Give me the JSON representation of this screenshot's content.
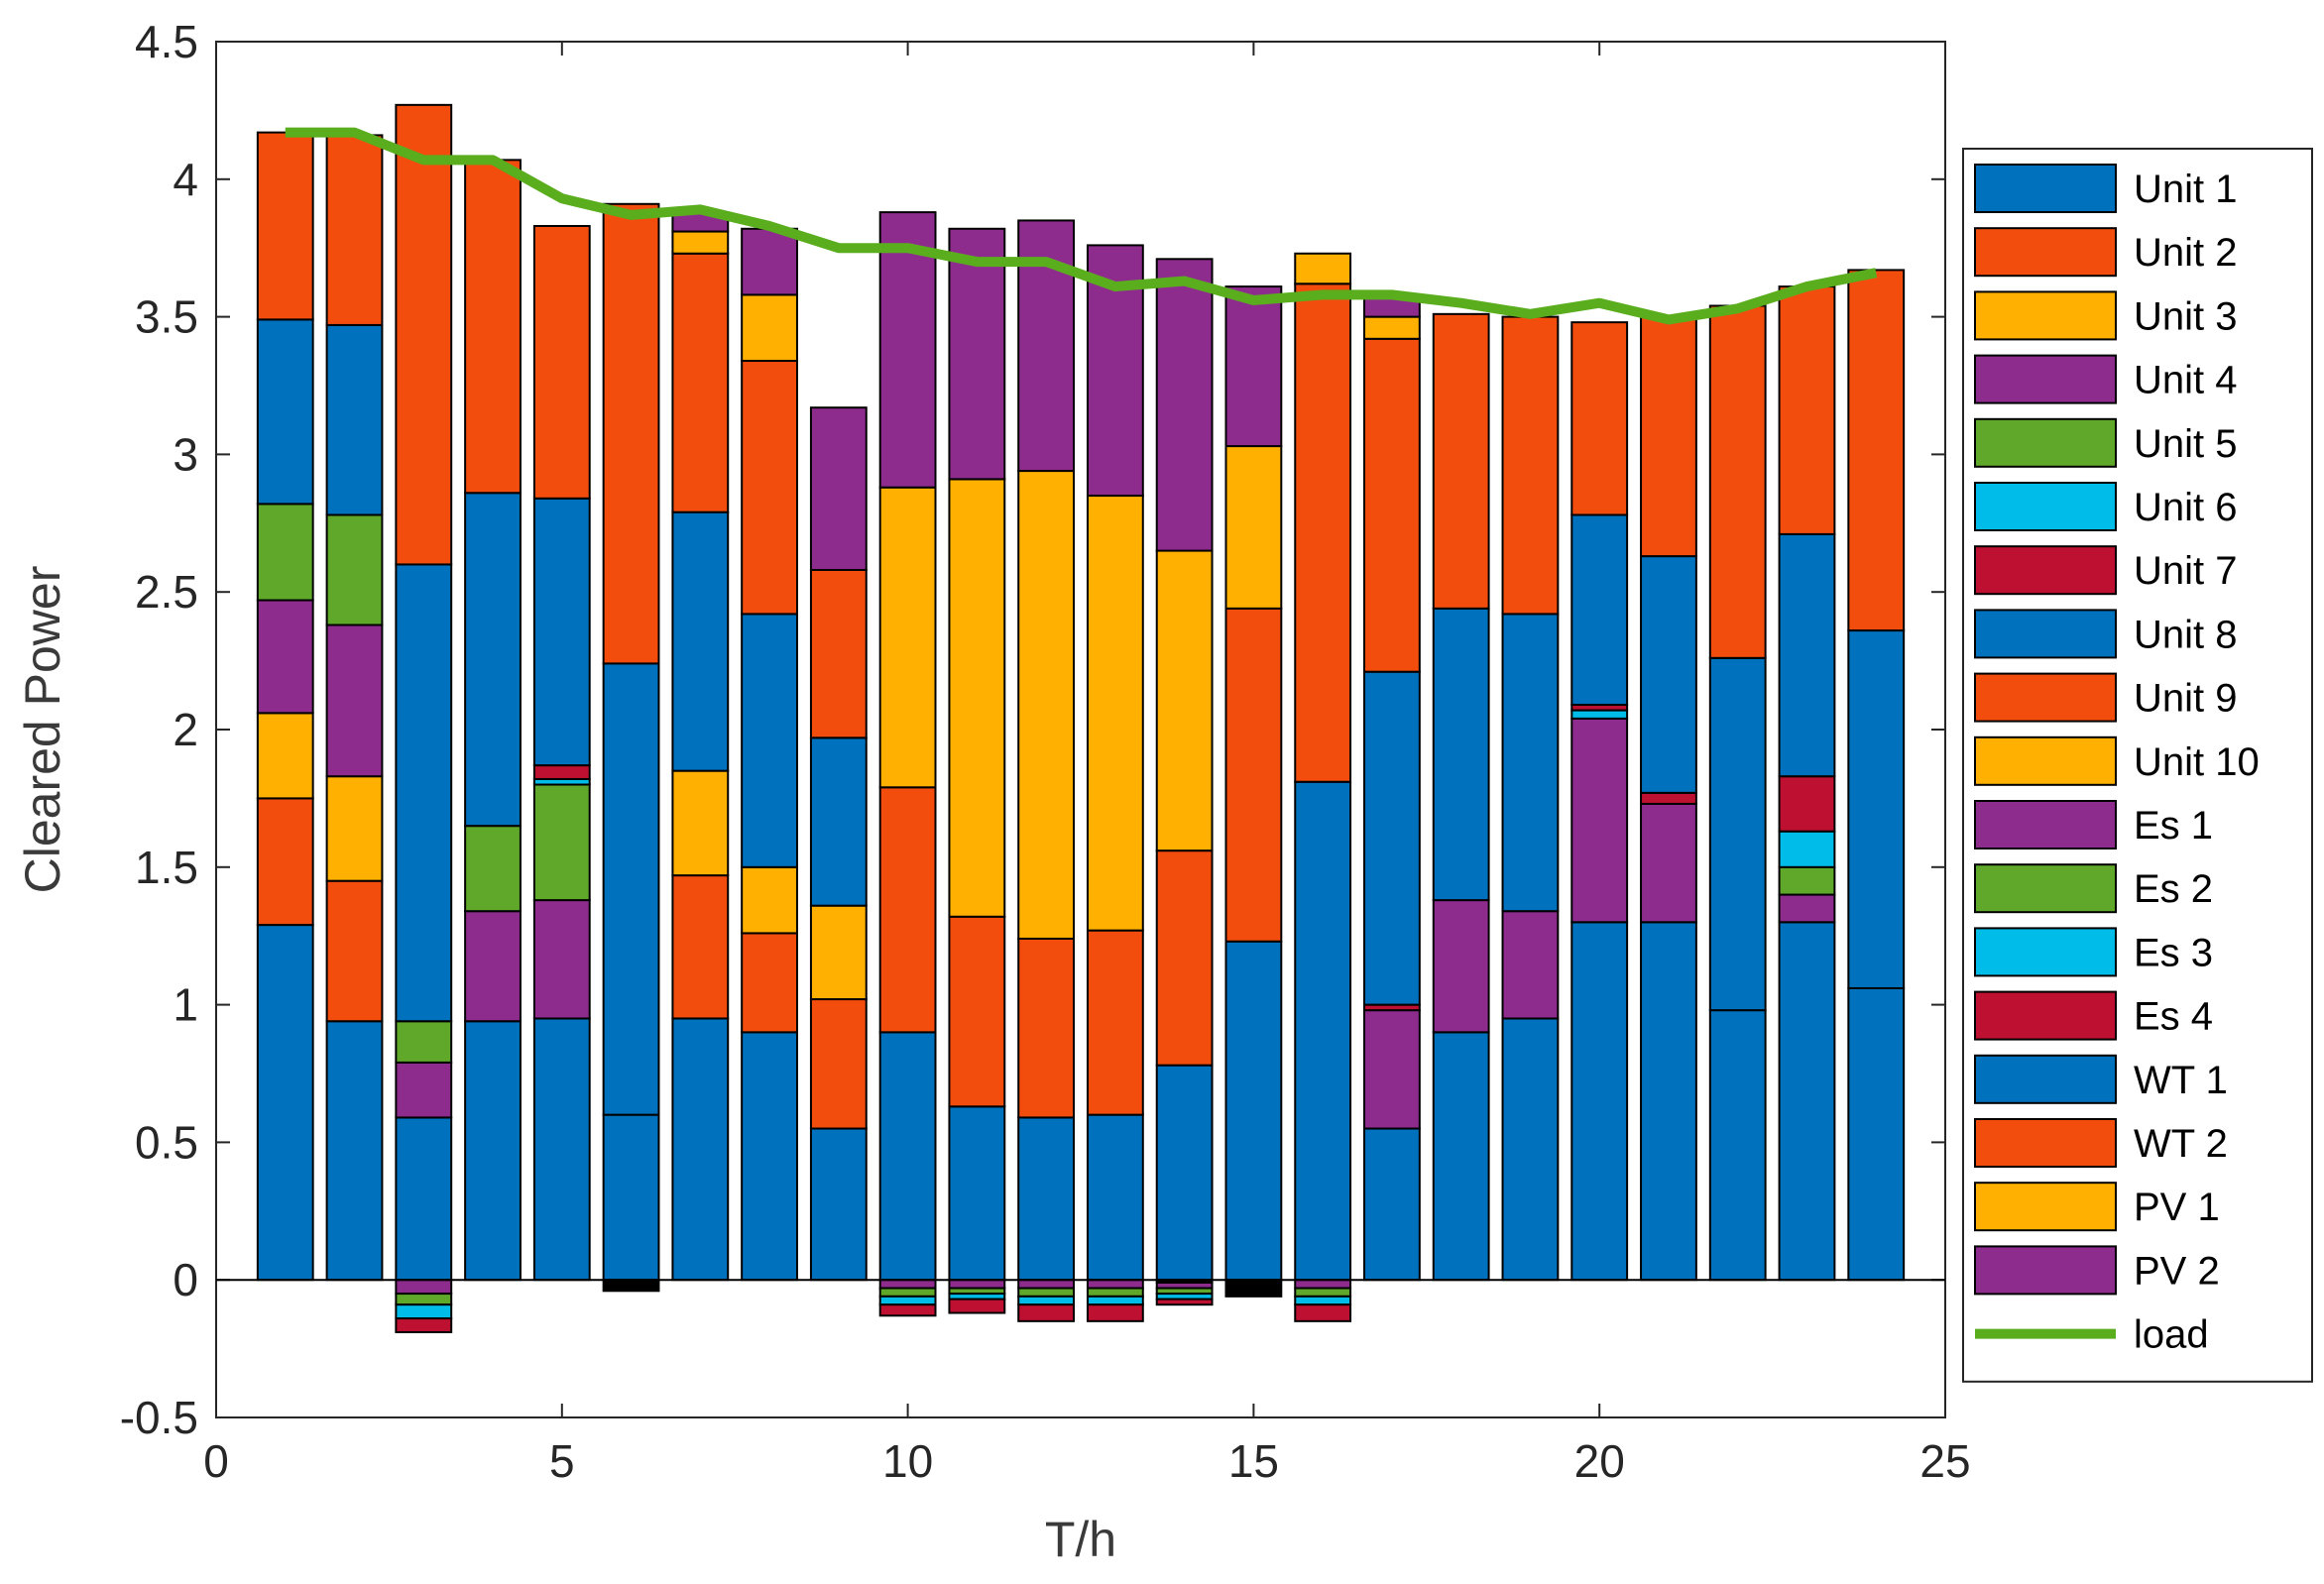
{
  "chart_data": {
    "type": "bar",
    "stacked": true,
    "xlabel": "T/h",
    "ylabel": "Cleared Power",
    "xlim": [
      0,
      25
    ],
    "ylim": [
      -0.5,
      4.5
    ],
    "xticks": [
      0,
      5,
      10,
      15,
      20,
      25
    ],
    "yticks": [
      -0.5,
      0,
      0.5,
      1,
      1.5,
      2,
      2.5,
      3,
      3.5,
      4,
      4.5
    ],
    "xtick_labels": [
      "0",
      "5",
      "10",
      "15",
      "20",
      "25"
    ],
    "ytick_labels": [
      "-0.5",
      "0",
      "0.5",
      "1",
      "1.5",
      "2",
      "2.5",
      "3",
      "3.5",
      "4",
      "4.5"
    ],
    "categories": [
      1,
      2,
      3,
      4,
      5,
      6,
      7,
      8,
      9,
      10,
      11,
      12,
      13,
      14,
      15,
      16,
      17,
      18,
      19,
      20,
      21,
      22,
      23,
      24
    ],
    "legend_position": "outside-right",
    "series": [
      {
        "name": "Unit 1",
        "color": "#0072BD",
        "values": [
          1.29,
          0.94,
          0.59,
          0.94,
          0.95,
          0.6,
          0.95,
          0.9,
          0.55,
          0.9,
          0.63,
          0.59,
          0.6,
          0.78,
          1.23,
          1.81,
          0.55,
          0.9,
          0.95,
          1.3,
          1.3,
          0.98,
          1.3,
          1.06
        ]
      },
      {
        "name": "Unit 2",
        "color": "#F24D0D",
        "values": [
          0.46,
          0.51,
          0,
          0,
          0,
          0,
          0.52,
          0.36,
          0.47,
          0.89,
          0.69,
          0.65,
          0.67,
          0.78,
          1.21,
          1.81,
          0,
          0,
          0,
          0,
          0,
          0,
          0,
          0
        ]
      },
      {
        "name": "Unit 3",
        "color": "#FFB000",
        "values": [
          0.31,
          0.38,
          0,
          0,
          0,
          0,
          0.38,
          0.24,
          0.34,
          1.09,
          1.59,
          1.7,
          1.58,
          1.09,
          0.59,
          0.11,
          0,
          0,
          0,
          0,
          0,
          0,
          0,
          0
        ]
      },
      {
        "name": "Unit 4",
        "color": "#8E2C8E",
        "values": [
          0.41,
          0.55,
          0.2,
          0.4,
          0.43,
          0,
          0,
          0,
          0,
          0,
          0,
          0,
          0,
          0,
          0,
          0,
          0.43,
          0.48,
          0.39,
          0.74,
          0.43,
          0,
          0.1,
          0
        ]
      },
      {
        "name": "Unit 5",
        "color": "#5FA82A",
        "values": [
          0.35,
          0.4,
          0.15,
          0.31,
          0.42,
          0,
          0,
          0,
          0,
          0,
          0,
          0,
          0,
          0,
          0,
          0,
          0,
          0,
          0,
          0,
          0,
          0,
          0.1,
          0
        ]
      },
      {
        "name": "Unit 6",
        "color": "#00BCE8",
        "values": [
          0,
          0,
          0,
          0,
          0.02,
          0,
          0,
          0,
          0,
          0,
          0,
          0,
          0,
          0,
          0,
          0,
          0,
          0,
          0,
          0.03,
          0,
          0,
          0.13,
          0
        ]
      },
      {
        "name": "Unit 7",
        "color": "#BE1030",
        "values": [
          0,
          0,
          0,
          0,
          0.05,
          0,
          0,
          0,
          0,
          0,
          0,
          0,
          0,
          0,
          0,
          0,
          0.02,
          0,
          0,
          0.02,
          0.04,
          0,
          0.2,
          0
        ]
      },
      {
        "name": "Unit 8",
        "color": "#0072BD",
        "values": [
          0.67,
          0.69,
          1.66,
          1.21,
          0.97,
          1.64,
          0.94,
          0.92,
          0.61,
          0,
          0,
          0,
          0,
          0,
          0,
          0,
          1.21,
          1.06,
          1.08,
          0.69,
          0.86,
          1.28,
          0.88,
          1.3
        ]
      },
      {
        "name": "Unit 9",
        "color": "#F24D0D",
        "values": [
          0.68,
          0.69,
          1.67,
          1.21,
          0.99,
          1.67,
          0.94,
          0.92,
          0.61,
          0,
          0,
          0,
          0,
          0,
          0,
          0,
          1.21,
          1.07,
          1.08,
          0.7,
          0.87,
          1.28,
          0.9,
          1.31
        ]
      },
      {
        "name": "Unit 10",
        "color": "#FFB000",
        "values": [
          0,
          0,
          0,
          0,
          0,
          0,
          0.08,
          0.24,
          0,
          0,
          0,
          0,
          0,
          0,
          0,
          0,
          0.08,
          0,
          0,
          0,
          0,
          0,
          0,
          0
        ]
      },
      {
        "name": "Es 1",
        "color": "#8E2C8E",
        "values": [
          0,
          0,
          0,
          0,
          0,
          0,
          0.07,
          0.24,
          0.59,
          1.0,
          0.91,
          0.91,
          0.91,
          1.06,
          0.58,
          0,
          0.08,
          0,
          0,
          0,
          0,
          0,
          0,
          0
        ]
      },
      {
        "name": "Es 2",
        "color": "#5FA82A",
        "values": [
          0,
          0,
          0,
          0,
          0,
          0,
          0,
          0,
          0,
          0,
          0,
          0,
          0,
          0,
          0,
          0,
          0,
          0,
          0,
          0,
          0,
          0,
          0,
          0
        ]
      },
      {
        "name": "Es 3",
        "color": "#00BCE8",
        "values": [
          0,
          0,
          0,
          0,
          0,
          0,
          0,
          0,
          0,
          0,
          0,
          0,
          0,
          0,
          0,
          0,
          0,
          0,
          0,
          0,
          0,
          0,
          0,
          0
        ]
      },
      {
        "name": "Es 4",
        "color": "#BE1030",
        "values": [
          0,
          0,
          0,
          0,
          0,
          0,
          0,
          0,
          0,
          0,
          0,
          0,
          0,
          0,
          0,
          0,
          0,
          0,
          0,
          0,
          0,
          0,
          0,
          0
        ]
      },
      {
        "name": "WT 1",
        "color": "#0072BD",
        "values": [
          0,
          0,
          0,
          0,
          0,
          0,
          0,
          0,
          0,
          0,
          0,
          0,
          0,
          0,
          0,
          0,
          0,
          0,
          0,
          0,
          0,
          0,
          0,
          0
        ]
      },
      {
        "name": "WT 2",
        "color": "#F24D0D",
        "values": [
          0,
          0,
          0,
          0,
          0,
          0,
          0,
          0,
          0,
          0,
          0,
          0,
          0,
          0,
          0,
          0,
          0,
          0,
          0,
          0,
          0,
          0,
          0,
          0
        ]
      },
      {
        "name": "PV 1",
        "color": "#FFB000",
        "values": [
          0,
          0,
          0,
          0,
          0,
          0,
          0,
          0,
          0,
          0,
          0,
          0,
          0,
          0,
          0,
          0,
          0,
          0,
          0,
          0,
          0,
          0,
          0,
          0
        ]
      },
      {
        "name": "PV 2",
        "color": "#8E2C8E",
        "values": [
          0,
          0,
          0,
          0,
          0,
          0,
          0,
          0,
          0,
          0,
          0,
          0,
          0,
          0,
          0,
          0,
          0,
          0,
          0,
          0,
          0,
          0,
          0,
          0
        ]
      }
    ],
    "negative_series": [
      {
        "name": "Unit 7",
        "color": "#000000",
        "values": [
          0,
          0,
          0,
          0,
          0,
          0.04,
          0,
          0,
          0,
          0,
          0,
          0,
          0,
          0.01,
          0.06,
          0,
          0,
          0,
          0,
          0,
          0,
          0,
          0,
          0
        ]
      },
      {
        "name": "Es 1",
        "color": "#8E2C8E",
        "values": [
          0,
          0,
          0.05,
          0,
          0,
          0,
          0,
          0,
          0,
          0.03,
          0.03,
          0.03,
          0.03,
          0.02,
          0,
          0.03,
          0,
          0,
          0,
          0,
          0,
          0,
          0,
          0
        ]
      },
      {
        "name": "Es 2",
        "color": "#5FA82A",
        "values": [
          0,
          0,
          0.04,
          0,
          0,
          0,
          0,
          0,
          0,
          0.03,
          0.02,
          0.03,
          0.03,
          0.02,
          0,
          0.03,
          0,
          0,
          0,
          0,
          0,
          0,
          0,
          0
        ]
      },
      {
        "name": "Es 3",
        "color": "#00BCE8",
        "values": [
          0,
          0,
          0.05,
          0,
          0,
          0,
          0,
          0,
          0,
          0.03,
          0.02,
          0.03,
          0.03,
          0.02,
          0,
          0.03,
          0,
          0,
          0,
          0,
          0,
          0,
          0,
          0
        ]
      },
      {
        "name": "Es 4",
        "color": "#BE1030",
        "values": [
          0,
          0,
          0.05,
          0,
          0,
          0,
          0,
          0,
          0,
          0.04,
          0.05,
          0.06,
          0.06,
          0.02,
          0,
          0.06,
          0,
          0,
          0,
          0,
          0,
          0,
          0,
          0
        ]
      }
    ],
    "line_series": {
      "name": "load",
      "color": "#5AAE1E",
      "x": [
        1,
        2,
        3,
        4,
        5,
        6,
        7,
        8,
        9,
        10,
        11,
        12,
        13,
        14,
        15,
        16,
        17,
        18,
        19,
        20,
        21,
        22,
        23,
        24
      ],
      "values": [
        4.17,
        4.17,
        4.07,
        4.07,
        3.93,
        3.87,
        3.89,
        3.83,
        3.75,
        3.75,
        3.7,
        3.7,
        3.61,
        3.63,
        3.56,
        3.58,
        3.58,
        3.55,
        3.51,
        3.55,
        3.49,
        3.53,
        3.61,
        3.66
      ]
    },
    "legend": [
      "Unit 1",
      "Unit 2",
      "Unit 3",
      "Unit 4",
      "Unit 5",
      "Unit 6",
      "Unit 7",
      "Unit 8",
      "Unit 9",
      "Unit 10",
      "Es 1",
      "Es 2",
      "Es 3",
      "Es 4",
      "WT 1",
      "WT 2",
      "PV 1",
      "PV 2",
      "load"
    ]
  }
}
